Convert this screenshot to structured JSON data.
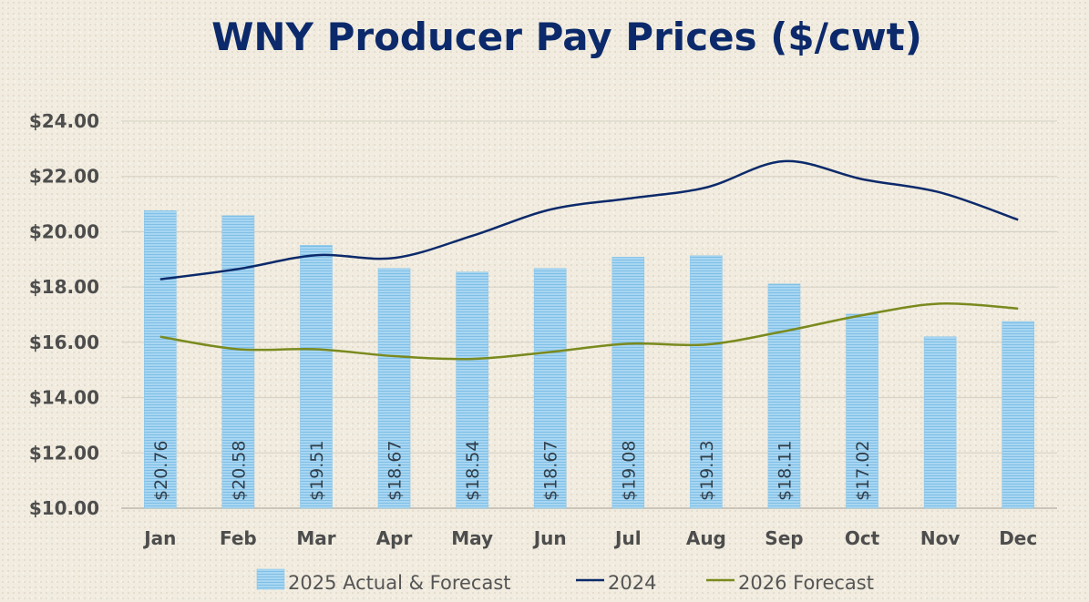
{
  "chart_data": {
    "type": "bar",
    "title": "WNY Producer Pay Prices ($/cwt)",
    "xlabel": "",
    "ylabel": "",
    "categories": [
      "Jan",
      "Feb",
      "Mar",
      "Apr",
      "May",
      "Jun",
      "Jul",
      "Aug",
      "Sep",
      "Oct",
      "Nov",
      "Dec"
    ],
    "ylim": [
      10,
      24
    ],
    "yticks": [
      10,
      12,
      14,
      16,
      18,
      20,
      22,
      24
    ],
    "ytick_labels": [
      "$10.00",
      "$12.00",
      "$14.00",
      "$16.00",
      "$18.00",
      "$20.00",
      "$22.00",
      "$24.00"
    ],
    "grid": true,
    "legend_position": "bottom",
    "series": [
      {
        "name": "2025 Actual & Forecast",
        "kind": "bar",
        "color": "#9fd2f0",
        "values": [
          20.76,
          20.58,
          19.51,
          18.67,
          18.54,
          18.67,
          19.08,
          19.13,
          18.11,
          17.02,
          16.2,
          16.75
        ],
        "data_labels": [
          "$20.76",
          "$20.58",
          "$19.51",
          "$18.67",
          "$18.54",
          "$18.67",
          "$19.08",
          "$19.13",
          "$18.11",
          "$17.02",
          "",
          ""
        ]
      },
      {
        "name": "2024",
        "kind": "line",
        "color": "#0c2a6b",
        "values": [
          18.28,
          18.65,
          19.15,
          19.05,
          19.85,
          20.8,
          21.2,
          21.6,
          22.55,
          21.9,
          21.42,
          20.43
        ]
      },
      {
        "name": "2026 Forecast",
        "kind": "line",
        "color": "#7a8a1e",
        "values": [
          16.2,
          15.75,
          15.75,
          15.5,
          15.4,
          15.65,
          15.95,
          15.92,
          16.4,
          16.98,
          17.4,
          17.22
        ]
      }
    ]
  }
}
